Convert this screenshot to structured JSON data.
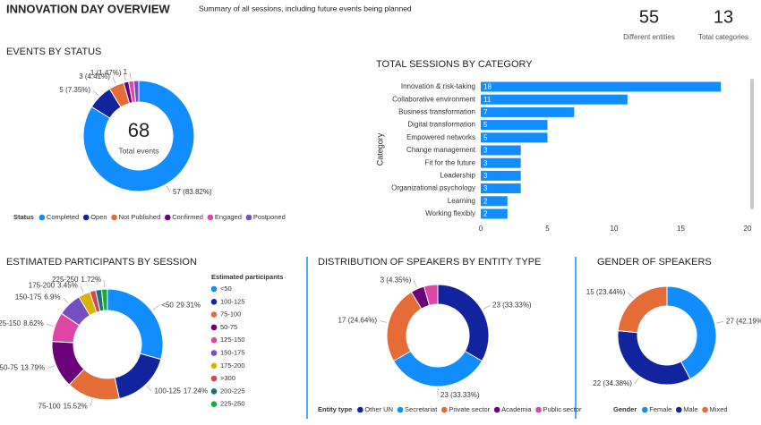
{
  "header": {
    "title": "INNOVATION DAY OVERVIEW",
    "subtitle": "Summary of all sessions, including future events being planned"
  },
  "kpis": [
    {
      "value": 55,
      "label": "Different entities"
    },
    {
      "value": 13,
      "label": "Total categories"
    }
  ],
  "chart_data": [
    {
      "type": "donut",
      "title": "EVENTS BY STATUS",
      "legend_title": "Status",
      "center_value": 68,
      "center_label": "Total events",
      "categories": [
        "Completed",
        "Open",
        "Not Published",
        "Confirmed",
        "Engaged",
        "Postponed"
      ],
      "values": [
        57,
        5,
        3,
        1,
        1,
        1
      ],
      "value_labels": [
        "57 (83.82%)",
        "5 (7.35%)",
        "3 (4.41%)",
        "1 (1.47%)",
        "1",
        null
      ],
      "colors": [
        "#118DFF",
        "#12239E",
        "#E66C37",
        "#6B007B",
        "#E044A7",
        "#744EC2"
      ]
    },
    {
      "type": "bar",
      "orientation": "horizontal",
      "title": "TOTAL SESSIONS BY CATEGORY",
      "y_label": "Category",
      "categories": [
        "Innovation & risk-taking",
        "Collaborative environment",
        "Business transformation",
        "Digital transformation",
        "Empowered networks",
        "Change management",
        "Fit for the future",
        "Leadership",
        "Organizational psychology",
        "Learning",
        "Working flexibly"
      ],
      "values": [
        18,
        11,
        7,
        5,
        5,
        3,
        3,
        3,
        3,
        2,
        2
      ],
      "color": "#118DFF",
      "xlim": [
        0,
        20
      ],
      "xticks": [
        0,
        5,
        10,
        15,
        20
      ]
    },
    {
      "type": "donut",
      "title": "ESTIMATED PARTICIPANTS BY SESSION",
      "legend_title": "Estimated participants",
      "categories": [
        "<50",
        "100-125",
        "75-100",
        "50-75",
        "125-150",
        "150-175",
        "175-200",
        ">300",
        "200-225",
        "225-250"
      ],
      "values": [
        29.31,
        17.24,
        15.52,
        13.79,
        8.62,
        6.9,
        3.45,
        1.72,
        1.72,
        1.72
      ],
      "value_labels": [
        "29.31%",
        "17.24%",
        "15.52%",
        "13.79%",
        "8.62%",
        "6.9%",
        "3.45%",
        null,
        null,
        "1.72%"
      ],
      "colors": [
        "#118DFF",
        "#12239E",
        "#E66C37",
        "#6B007B",
        "#E044A7",
        "#744EC2",
        "#D9B300",
        "#D64550",
        "#197278",
        "#1AAB40"
      ]
    },
    {
      "type": "donut",
      "title": "DISTRIBUTION OF SPEAKERS BY ENTITY TYPE",
      "legend_title": "Entity type",
      "categories": [
        "Other UN",
        "Secretariat",
        "Private sector",
        "Academia",
        "Public sector"
      ],
      "values": [
        23,
        23,
        17,
        3,
        3
      ],
      "value_labels": [
        "23 (33.33%)",
        "23 (33.33%)",
        "17 (24.64%)",
        "3 (4.35%)",
        null
      ],
      "colors": [
        "#12239E",
        "#118DFF",
        "#E66C37",
        "#6B007B",
        "#E044A7"
      ]
    },
    {
      "type": "donut",
      "title": "GENDER OF SPEAKERS",
      "legend_title": "Gender",
      "categories": [
        "Female",
        "Male",
        "Mixed"
      ],
      "values": [
        27,
        22,
        15
      ],
      "value_labels": [
        "27 (42.19%)",
        "22 (34.38%)",
        "15 (23.44%)"
      ],
      "colors": [
        "#118DFF",
        "#12239E",
        "#E66C37"
      ]
    }
  ]
}
